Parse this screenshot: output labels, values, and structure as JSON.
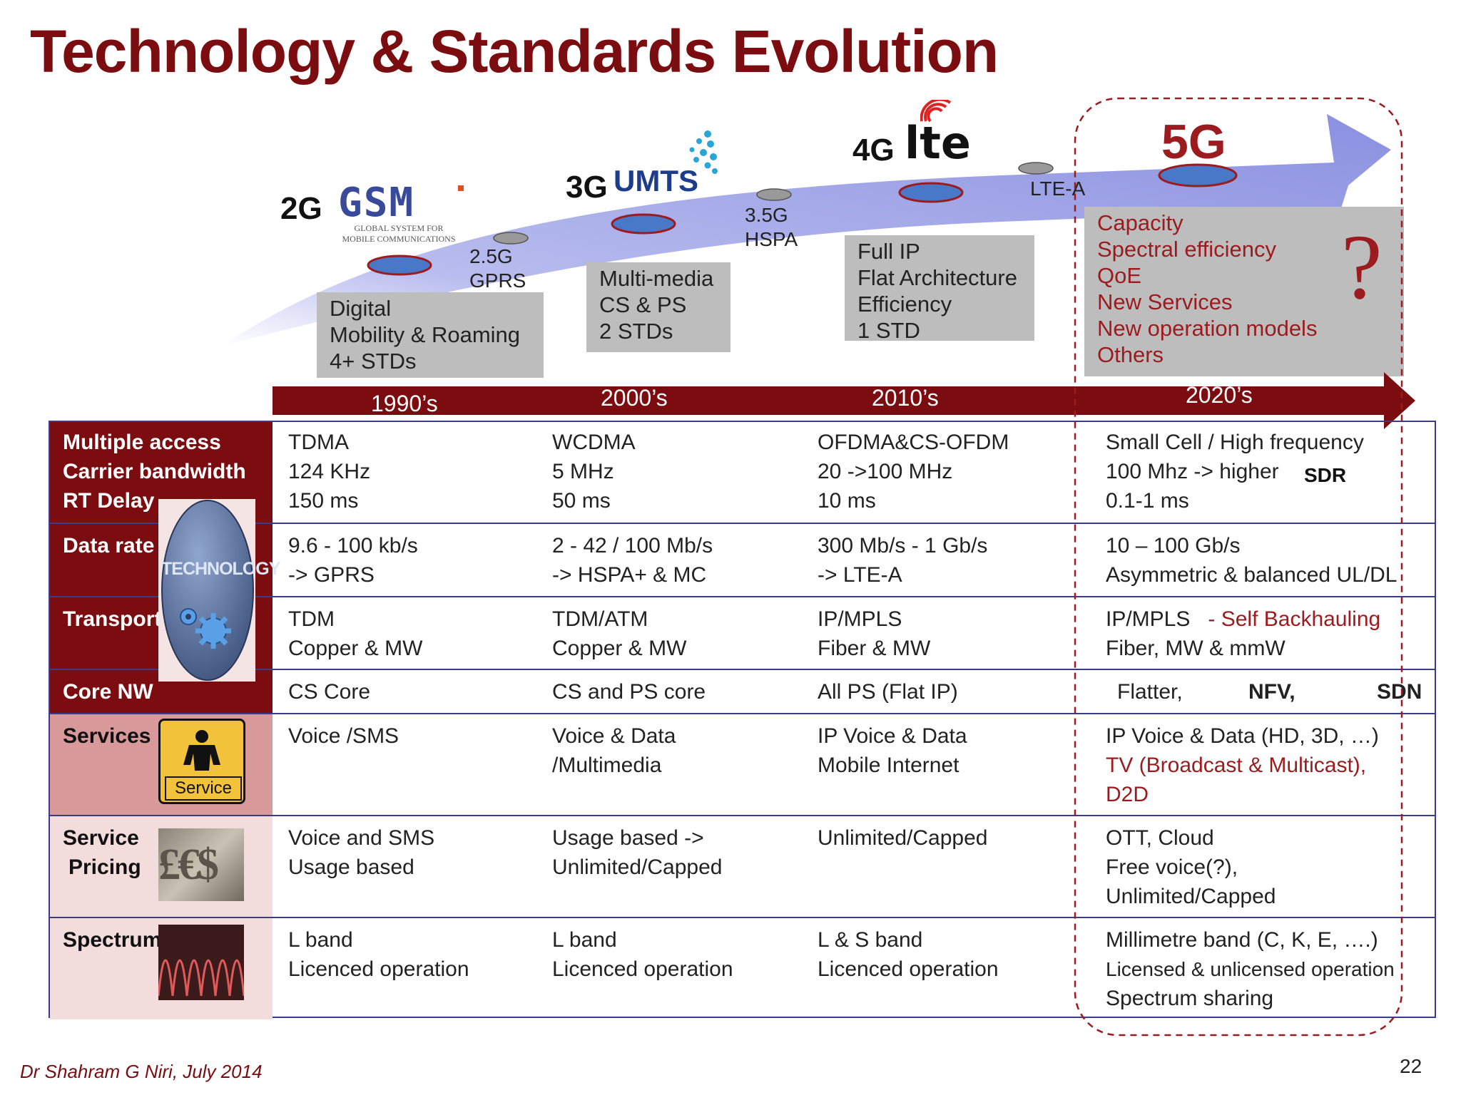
{
  "title": "Technology & Standards Evolution",
  "colors": {
    "maroon": "#7b0d10",
    "accent_red": "#9b1b1e",
    "arrow": "#9aa0e6",
    "border": "#3b3b8c",
    "gray_box": "#bdbdbd"
  },
  "timeline": {
    "gen_2g": "2G",
    "gsm_logo": "GSM",
    "gsm_tagline1": "GLOBAL SYSTEM FOR",
    "gsm_tagline2": "MOBILE COMMUNICATIONS",
    "gen_25g": "2.5G",
    "gprs": "GPRS",
    "gen_3g": "3G",
    "umts_logo": "UMTS",
    "gen_35g": "3.5G",
    "hspa": "HSPA",
    "gen_4g": "4G",
    "lte_logo": "lte",
    "lte_a": "LTE-A",
    "gen_5g": "5G",
    "question_mark": "?"
  },
  "boxes": {
    "box_2g": [
      "Digital",
      "Mobility & Roaming",
      "4+ STDs"
    ],
    "box_3g": [
      "Multi-media",
      "CS & PS",
      "2 STDs"
    ],
    "box_4g": [
      "Full IP",
      "Flat Architecture",
      "Efficiency",
      "1 STD"
    ],
    "box_5g": [
      "Capacity",
      "Spectral efficiency",
      "QoE",
      "New Services",
      "New operation models",
      "Others"
    ]
  },
  "decades": [
    "1990’s",
    "2000’s",
    "2010’s",
    "2020’s"
  ],
  "rows": {
    "access": {
      "labels": [
        "Multiple access",
        "Carrier bandwidth",
        "RT Delay"
      ],
      "c1": [
        "TDMA",
        "124 KHz",
        "150 ms"
      ],
      "c2": [
        "WCDMA",
        "5 MHz",
        "50 ms"
      ],
      "c3": [
        "OFDMA&CS-OFDM",
        "20 ->100 MHz",
        "10 ms"
      ],
      "c4": [
        "Small Cell / High frequency",
        "100 Mhz -> higher",
        "0.1-1 ms"
      ],
      "sdr": "SDR"
    },
    "datarate": {
      "label": "Data rate",
      "c1": [
        "9.6 - 100 kb/s",
        "-> GPRS"
      ],
      "c2": [
        "2 -  42 / 100 Mb/s",
        "-> HSPA+ & MC"
      ],
      "c3": [
        "300 Mb/s - 1 Gb/s",
        "-> LTE-A"
      ],
      "c4": [
        "10 – 100 Gb/s",
        "Asymmetric & balanced UL/DL"
      ]
    },
    "transport": {
      "label": "Transport",
      "c1": [
        "TDM",
        "Copper & MW"
      ],
      "c2": [
        "TDM/ATM",
        "Copper & MW"
      ],
      "c3": [
        "IP/MPLS",
        "Fiber & MW"
      ],
      "c4_line1a": "IP/MPLS",
      "c4_line1b": "- Self Backhauling",
      "c4_line2": "Fiber, MW & mmW"
    },
    "core": {
      "label": "Core NW",
      "c1": "CS Core",
      "c2": "CS and PS core",
      "c3": "All PS (Flat IP)",
      "c4a": "Flatter,",
      "c4b": "NFV,",
      "c4c": "SDN"
    },
    "services": {
      "label": "Services",
      "icon_text": "Service",
      "c1": [
        "Voice /SMS"
      ],
      "c2": [
        "Voice & Data",
        "/Multimedia"
      ],
      "c3": [
        "IP Voice & Data",
        "Mobile Internet"
      ],
      "c4_black": "IP Voice & Data (HD, 3D, …)",
      "c4_red": [
        "TV (Broadcast & Multicast),",
        "D2D"
      ]
    },
    "pricing": {
      "labels": [
        "Service",
        "Pricing"
      ],
      "icon_text": "£€$",
      "c1": [
        "Voice and SMS",
        "Usage based"
      ],
      "c2": [
        "Usage based ->",
        "Unlimited/Capped"
      ],
      "c3": [
        "Unlimited/Capped"
      ],
      "c4": [
        "OTT, Cloud",
        "Free voice(?),",
        "Unlimited/Capped"
      ]
    },
    "spectrum": {
      "label": "Spectrum",
      "c1": [
        "L band",
        "Licenced operation"
      ],
      "c2": [
        "L band",
        "Licenced operation"
      ],
      "c3": [
        "L & S band",
        "Licenced operation"
      ],
      "c4": [
        "Millimetre band (C, K, E, ….)",
        "Licensed & unlicensed operation",
        "Spectrum sharing"
      ]
    }
  },
  "technology_badge": "TECHNOLOGY",
  "footer": {
    "author": "Dr Shahram G Niri, July 2014",
    "page": "22"
  }
}
